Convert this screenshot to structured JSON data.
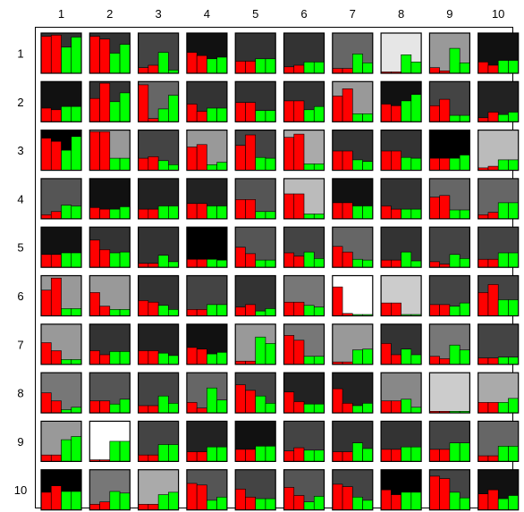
{
  "chart_data": {
    "type": "heatmap",
    "title": "",
    "col_labels": [
      "1",
      "2",
      "3",
      "4",
      "5",
      "6",
      "7",
      "8",
      "9",
      "10"
    ],
    "row_labels": [
      "1",
      "2",
      "3",
      "4",
      "5",
      "6",
      "7",
      "8",
      "9",
      "10"
    ],
    "value_range": [
      0,
      1
    ],
    "colors": {
      "red": "#ff0000",
      "green": "#00ff00",
      "stroke": "#000000"
    },
    "cells": [
      [
        {
          "bg": "#333333",
          "bars": [
            0.92,
            0.95,
            0.65,
            0.9
          ]
        },
        {
          "bg": "#333333",
          "bars": [
            0.92,
            0.85,
            0.5,
            0.72
          ]
        },
        {
          "bg": "#444444",
          "bars": [
            0.14,
            0.2,
            0.52,
            0.08
          ]
        },
        {
          "bg": "#111111",
          "bars": [
            0.52,
            0.44,
            0.36,
            0.4
          ]
        },
        {
          "bg": "#333333",
          "bars": [
            0.3,
            0.3,
            0.36,
            0.36
          ]
        },
        {
          "bg": "#333333",
          "bars": [
            0.16,
            0.2,
            0.28,
            0.28
          ]
        },
        {
          "bg": "#666666",
          "bars": [
            0.12,
            0.12,
            0.48,
            0.26
          ]
        },
        {
          "bg": "#e6e6e6",
          "bars": [
            0.03,
            0.03,
            0.46,
            0.28
          ]
        },
        {
          "bg": "#999999",
          "bars": [
            0.14,
            0.06,
            0.62,
            0.26
          ]
        },
        {
          "bg": "#111111",
          "bars": [
            0.28,
            0.2,
            0.32,
            0.32
          ]
        }
      ],
      [
        {
          "bg": "#111111",
          "bars": [
            0.34,
            0.3,
            0.38,
            0.38
          ]
        },
        {
          "bg": "#333333",
          "bars": [
            0.58,
            0.96,
            0.5,
            0.72
          ]
        },
        {
          "bg": "#666666",
          "bars": [
            0.92,
            0.08,
            0.32,
            0.66
          ]
        },
        {
          "bg": "#333333",
          "bars": [
            0.44,
            0.26,
            0.34,
            0.34
          ]
        },
        {
          "bg": "#333333",
          "bars": [
            0.48,
            0.48,
            0.28,
            0.28
          ]
        },
        {
          "bg": "#333333",
          "bars": [
            0.52,
            0.52,
            0.3,
            0.38
          ]
        },
        {
          "bg": "#999999",
          "bars": [
            0.64,
            0.82,
            0.2,
            0.2
          ]
        },
        {
          "bg": "#111111",
          "bars": [
            0.44,
            0.4,
            0.52,
            0.68
          ]
        },
        {
          "bg": "#444444",
          "bars": [
            0.4,
            0.56,
            0.16,
            0.16
          ]
        },
        {
          "bg": "#222222",
          "bars": [
            0.1,
            0.24,
            0.18,
            0.24
          ]
        }
      ],
      [
        {
          "bg": "#000000",
          "bars": [
            0.8,
            0.72,
            0.5,
            0.84
          ]
        },
        {
          "bg": "#999999",
          "bars": [
            0.96,
            0.96,
            0.3,
            0.3
          ]
        },
        {
          "bg": "#444444",
          "bars": [
            0.3,
            0.34,
            0.24,
            0.14
          ]
        },
        {
          "bg": "#999999",
          "bars": [
            0.58,
            0.64,
            0.14,
            0.2
          ]
        },
        {
          "bg": "#444444",
          "bars": [
            0.62,
            0.88,
            0.32,
            0.3
          ]
        },
        {
          "bg": "#aaaaaa",
          "bars": [
            0.82,
            0.9,
            0.16,
            0.16
          ]
        },
        {
          "bg": "#333333",
          "bars": [
            0.48,
            0.48,
            0.26,
            0.22
          ]
        },
        {
          "bg": "#333333",
          "bars": [
            0.48,
            0.48,
            0.32,
            0.3
          ]
        },
        {
          "bg": "#000000",
          "bars": [
            0.3,
            0.3,
            0.3,
            0.38
          ]
        },
        {
          "bg": "#bbbbbb",
          "bars": [
            0.06,
            0.1,
            0.26,
            0.26
          ]
        }
      ],
      [
        {
          "bg": "#555555",
          "bars": [
            0.1,
            0.18,
            0.34,
            0.32
          ]
        },
        {
          "bg": "#111111",
          "bars": [
            0.28,
            0.24,
            0.24,
            0.3
          ]
        },
        {
          "bg": "#222222",
          "bars": [
            0.24,
            0.24,
            0.32,
            0.32
          ]
        },
        {
          "bg": "#222222",
          "bars": [
            0.38,
            0.38,
            0.32,
            0.32
          ]
        },
        {
          "bg": "#555555",
          "bars": [
            0.48,
            0.48,
            0.18,
            0.18
          ]
        },
        {
          "bg": "#bbbbbb",
          "bars": [
            0.62,
            0.62,
            0.12,
            0.12
          ]
        },
        {
          "bg": "#111111",
          "bars": [
            0.4,
            0.4,
            0.32,
            0.32
          ]
        },
        {
          "bg": "#333333",
          "bars": [
            0.32,
            0.24,
            0.24,
            0.24
          ]
        },
        {
          "bg": "#666666",
          "bars": [
            0.54,
            0.58,
            0.22,
            0.22
          ]
        },
        {
          "bg": "#666666",
          "bars": [
            0.1,
            0.16,
            0.4,
            0.4
          ]
        }
      ],
      [
        {
          "bg": "#111111",
          "bars": [
            0.32,
            0.32,
            0.36,
            0.36
          ]
        },
        {
          "bg": "#333333",
          "bars": [
            0.68,
            0.44,
            0.36,
            0.38
          ]
        },
        {
          "bg": "#333333",
          "bars": [
            0.1,
            0.1,
            0.3,
            0.14
          ]
        },
        {
          "bg": "#000000",
          "bars": [
            0.2,
            0.2,
            0.2,
            0.18
          ]
        },
        {
          "bg": "#555555",
          "bars": [
            0.5,
            0.34,
            0.18,
            0.18
          ]
        },
        {
          "bg": "#444444",
          "bars": [
            0.36,
            0.28,
            0.38,
            0.22
          ]
        },
        {
          "bg": "#666666",
          "bars": [
            0.52,
            0.38,
            0.2,
            0.18
          ]
        },
        {
          "bg": "#333333",
          "bars": [
            0.18,
            0.18,
            0.38,
            0.16
          ]
        },
        {
          "bg": "#444444",
          "bars": [
            0.14,
            0.08,
            0.32,
            0.22
          ]
        },
        {
          "bg": "#444444",
          "bars": [
            0.2,
            0.2,
            0.36,
            0.36
          ]
        }
      ],
      [
        {
          "bg": "#999999",
          "bars": [
            0.64,
            0.94,
            0.18,
            0.18
          ]
        },
        {
          "bg": "#999999",
          "bars": [
            0.58,
            0.24,
            0.16,
            0.16
          ]
        },
        {
          "bg": "#333333",
          "bars": [
            0.38,
            0.34,
            0.26,
            0.16
          ]
        },
        {
          "bg": "#444444",
          "bars": [
            0.16,
            0.16,
            0.28,
            0.28
          ]
        },
        {
          "bg": "#333333",
          "bars": [
            0.22,
            0.28,
            0.12,
            0.18
          ]
        },
        {
          "bg": "#777777",
          "bars": [
            0.34,
            0.34,
            0.26,
            0.22
          ]
        },
        {
          "bg": "#ffffff",
          "bars": [
            0.72,
            0.06,
            0.03,
            0.03
          ]
        },
        {
          "bg": "#cccccc",
          "bars": [
            0.32,
            0.32,
            0.03,
            0.03
          ]
        },
        {
          "bg": "#444444",
          "bars": [
            0.28,
            0.28,
            0.24,
            0.32
          ]
        },
        {
          "bg": "#444444",
          "bars": [
            0.58,
            0.78,
            0.4,
            0.4
          ]
        }
      ],
      [
        {
          "bg": "#999999",
          "bars": [
            0.54,
            0.34,
            0.12,
            0.12
          ]
        },
        {
          "bg": "#333333",
          "bars": [
            0.34,
            0.24,
            0.32,
            0.32
          ]
        },
        {
          "bg": "#222222",
          "bars": [
            0.34,
            0.34,
            0.28,
            0.22
          ]
        },
        {
          "bg": "#111111",
          "bars": [
            0.42,
            0.38,
            0.26,
            0.3
          ]
        },
        {
          "bg": "#999999",
          "bars": [
            0.08,
            0.08,
            0.68,
            0.52
          ]
        },
        {
          "bg": "#777777",
          "bars": [
            0.72,
            0.6,
            0.2,
            0.2
          ]
        },
        {
          "bg": "#999999",
          "bars": [
            0.06,
            0.06,
            0.36,
            0.38
          ]
        },
        {
          "bg": "#333333",
          "bars": [
            0.52,
            0.24,
            0.38,
            0.24
          ]
        },
        {
          "bg": "#777777",
          "bars": [
            0.2,
            0.14,
            0.48,
            0.36
          ]
        },
        {
          "bg": "#444444",
          "bars": [
            0.16,
            0.16,
            0.18,
            0.18
          ]
        }
      ],
      [
        {
          "bg": "#777777",
          "bars": [
            0.5,
            0.3,
            0.08,
            0.14
          ]
        },
        {
          "bg": "#555555",
          "bars": [
            0.3,
            0.3,
            0.22,
            0.34
          ]
        },
        {
          "bg": "#444444",
          "bars": [
            0.18,
            0.18,
            0.42,
            0.24
          ]
        },
        {
          "bg": "#666666",
          "bars": [
            0.26,
            0.12,
            0.62,
            0.32
          ]
        },
        {
          "bg": "#444444",
          "bars": [
            0.7,
            0.56,
            0.42,
            0.24
          ]
        },
        {
          "bg": "#222222",
          "bars": [
            0.52,
            0.28,
            0.22,
            0.22
          ]
        },
        {
          "bg": "#222222",
          "bars": [
            0.6,
            0.24,
            0.18,
            0.24
          ]
        },
        {
          "bg": "#888888",
          "bars": [
            0.3,
            0.3,
            0.34,
            0.14
          ]
        },
        {
          "bg": "#cccccc",
          "bars": [
            0.04,
            0.04,
            0.04,
            0.04
          ]
        },
        {
          "bg": "#aaaaaa",
          "bars": [
            0.26,
            0.26,
            0.26,
            0.36
          ]
        }
      ],
      [
        {
          "bg": "#999999",
          "bars": [
            0.16,
            0.16,
            0.54,
            0.62
          ]
        },
        {
          "bg": "#ffffff",
          "bars": [
            0.04,
            0.04,
            0.5,
            0.5
          ]
        },
        {
          "bg": "#444444",
          "bars": [
            0.16,
            0.16,
            0.42,
            0.42
          ]
        },
        {
          "bg": "#222222",
          "bars": [
            0.24,
            0.24,
            0.36,
            0.36
          ]
        },
        {
          "bg": "#111111",
          "bars": [
            0.3,
            0.3,
            0.38,
            0.38
          ]
        },
        {
          "bg": "#444444",
          "bars": [
            0.26,
            0.34,
            0.28,
            0.28
          ]
        },
        {
          "bg": "#333333",
          "bars": [
            0.24,
            0.24,
            0.46,
            0.32
          ]
        },
        {
          "bg": "#333333",
          "bars": [
            0.3,
            0.3,
            0.36,
            0.36
          ]
        },
        {
          "bg": "#444444",
          "bars": [
            0.3,
            0.3,
            0.46,
            0.46
          ]
        },
        {
          "bg": "#666666",
          "bars": [
            0.14,
            0.14,
            0.38,
            0.38
          ]
        }
      ],
      [
        {
          "bg": "#000000",
          "bars": [
            0.44,
            0.6,
            0.46,
            0.46
          ]
        },
        {
          "bg": "#777777",
          "bars": [
            0.14,
            0.2,
            0.46,
            0.42
          ]
        },
        {
          "bg": "#aaaaaa",
          "bars": [
            0.14,
            0.14,
            0.38,
            0.44
          ]
        },
        {
          "bg": "#555555",
          "bars": [
            0.66,
            0.62,
            0.24,
            0.32
          ]
        },
        {
          "bg": "#444444",
          "bars": [
            0.52,
            0.32,
            0.28,
            0.28
          ]
        },
        {
          "bg": "#555555",
          "bars": [
            0.56,
            0.36,
            0.2,
            0.34
          ]
        },
        {
          "bg": "#444444",
          "bars": [
            0.64,
            0.58,
            0.32,
            0.24
          ]
        },
        {
          "bg": "#000000",
          "bars": [
            0.5,
            0.38,
            0.44,
            0.44
          ]
        },
        {
          "bg": "#444444",
          "bars": [
            0.84,
            0.78,
            0.44,
            0.3
          ]
        },
        {
          "bg": "#111111",
          "bars": [
            0.4,
            0.5,
            0.28,
            0.36
          ]
        }
      ]
    ]
  }
}
